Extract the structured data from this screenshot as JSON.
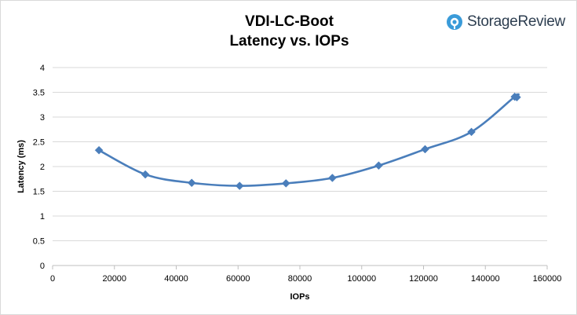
{
  "brand": {
    "name": "StorageReview",
    "icon": "storagereview-logo-icon",
    "color": "#3a9bd9"
  },
  "chart_data": {
    "type": "line",
    "title": [
      "VDI-LC-Boot",
      "Latency vs. IOPs"
    ],
    "xlabel": "IOPs",
    "ylabel": "Latency (ms)",
    "xlim": [
      0,
      160000
    ],
    "ylim": [
      0,
      4
    ],
    "xticks": [
      0,
      20000,
      40000,
      60000,
      80000,
      100000,
      120000,
      140000,
      160000
    ],
    "yticks": [
      0,
      0.5,
      1,
      1.5,
      2,
      2.5,
      3,
      3.5,
      4
    ],
    "grid": true,
    "legend": "none",
    "series": [
      {
        "color": "#4a7ebb",
        "marker": "diamond",
        "x": [
          15000,
          30000,
          45000,
          60500,
          75500,
          90500,
          105500,
          120500,
          135500,
          149500,
          150200
        ],
        "y": [
          2.33,
          1.84,
          1.67,
          1.61,
          1.66,
          1.77,
          2.02,
          2.35,
          2.7,
          3.41,
          3.4
        ]
      }
    ]
  }
}
